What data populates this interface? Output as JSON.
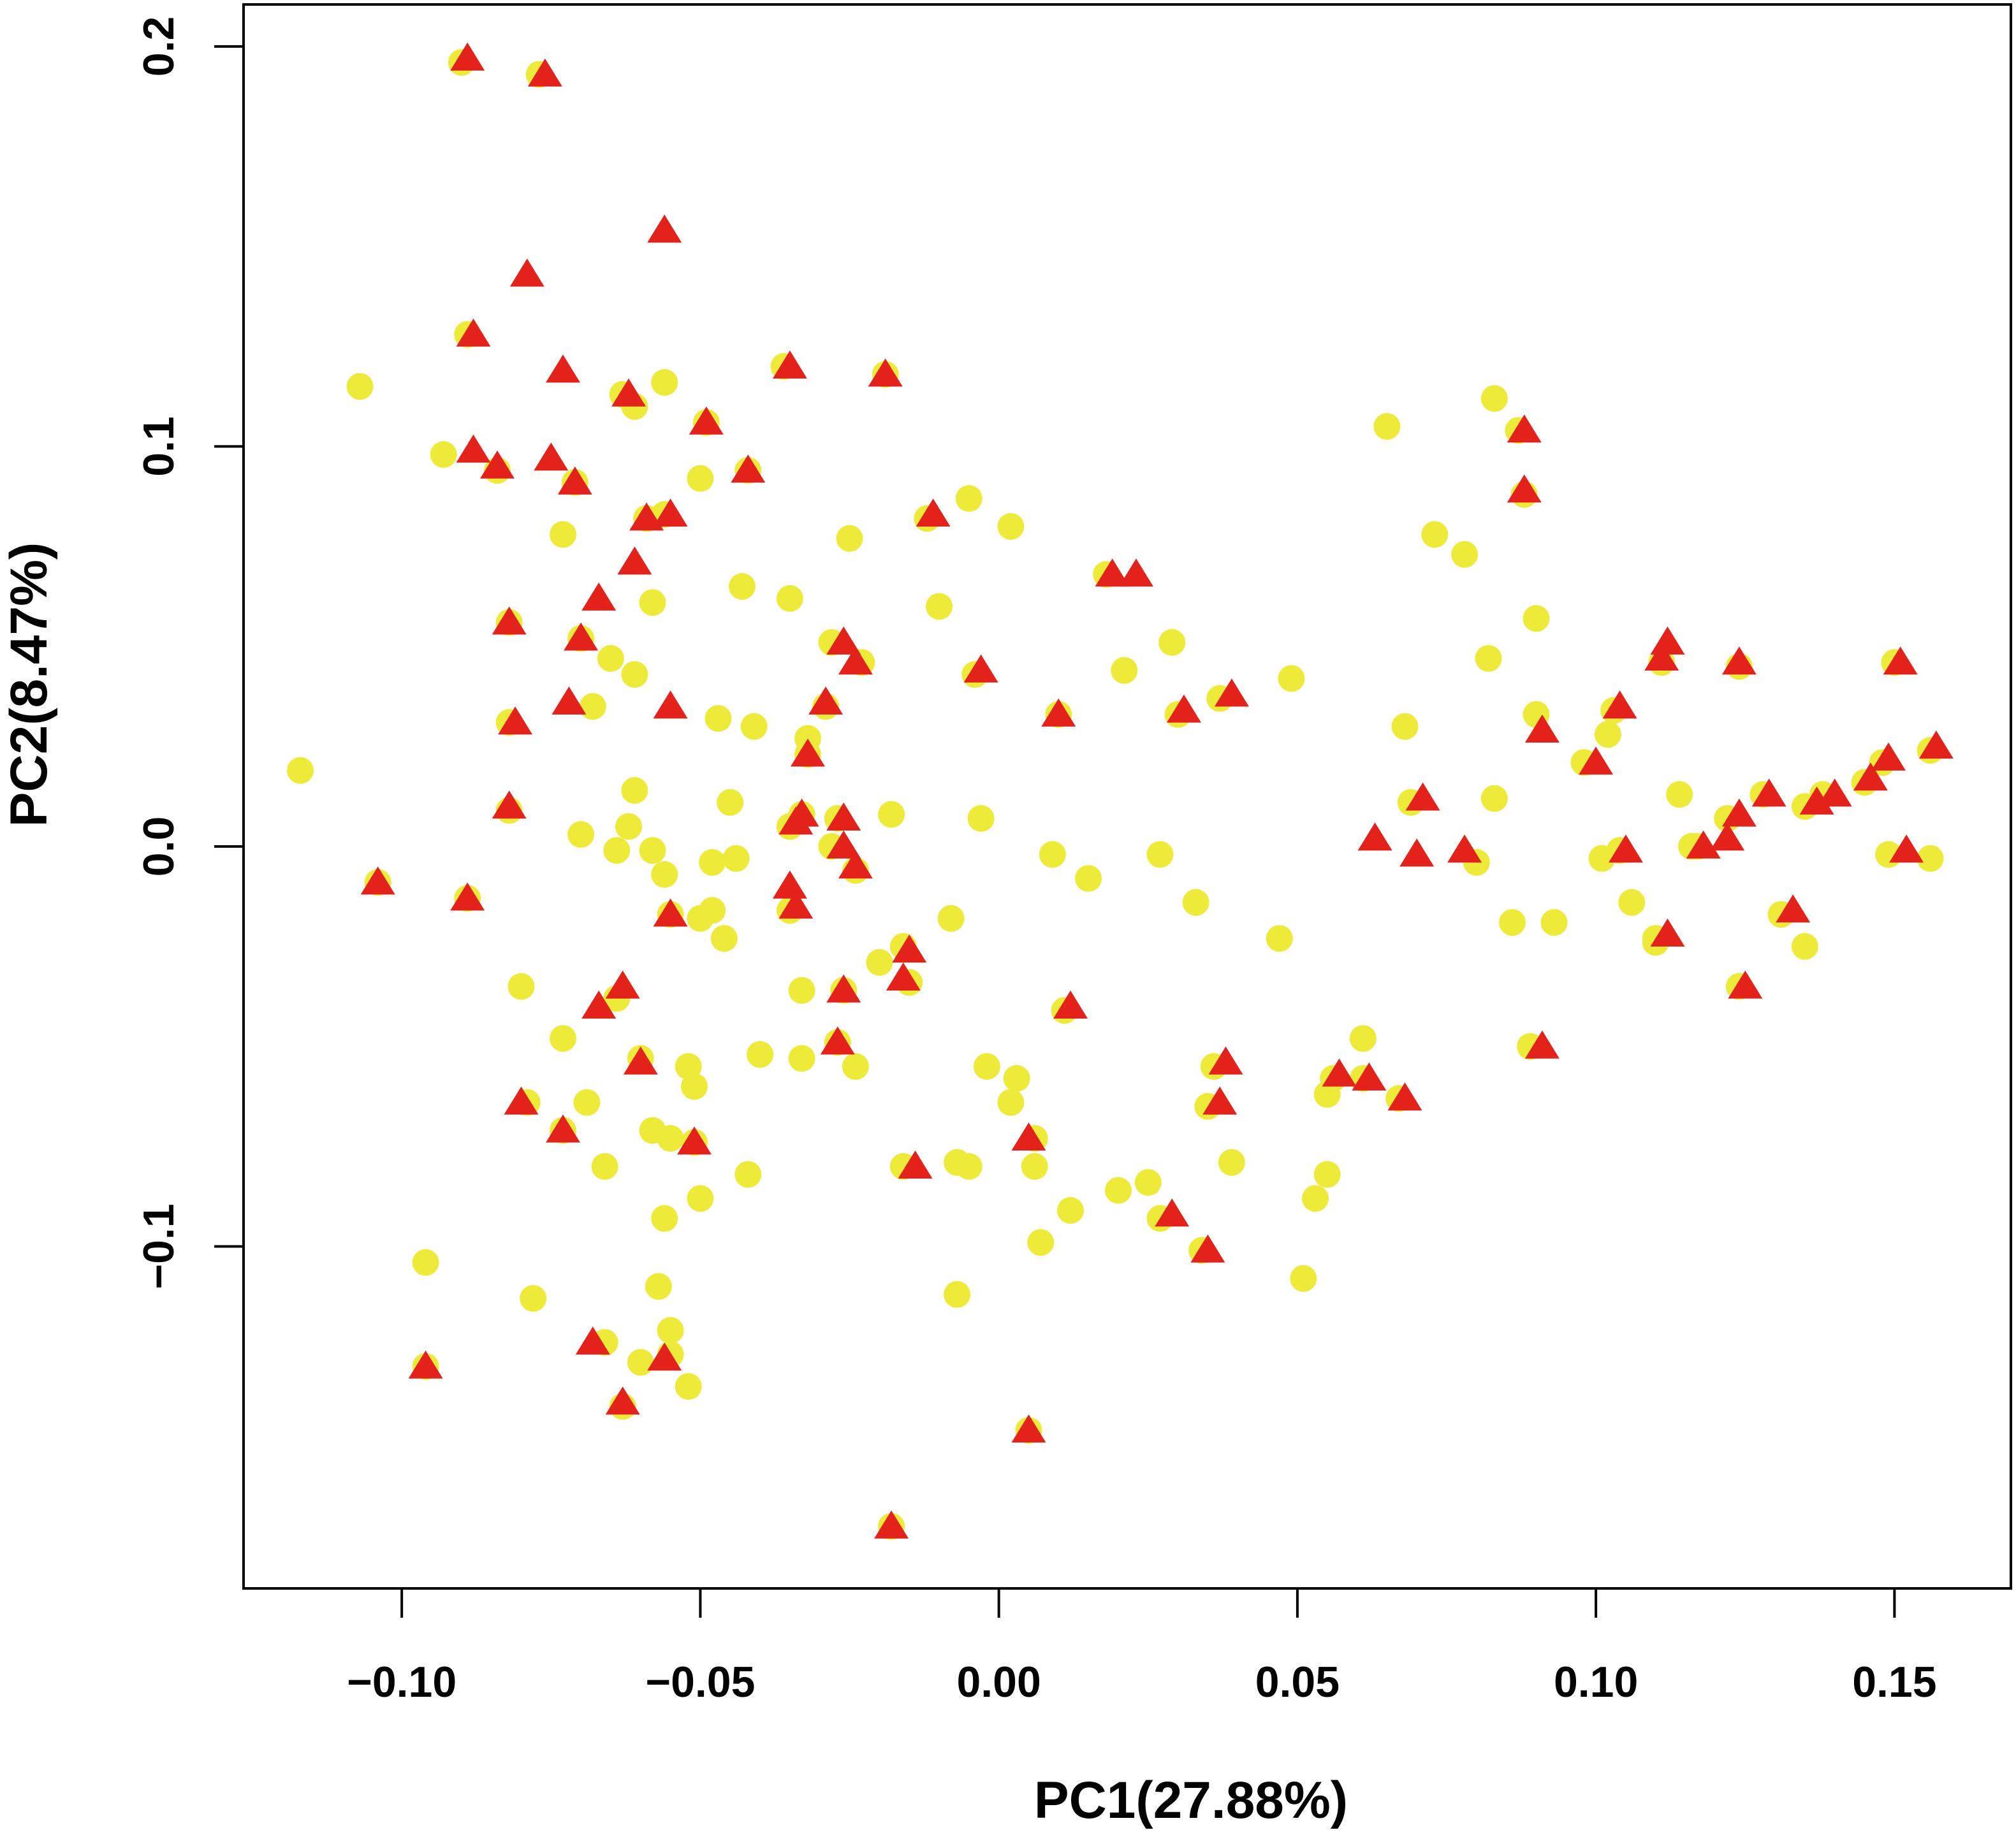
{
  "chart_data": {
    "type": "scatter",
    "xlabel": "PC1(27.88%)",
    "ylabel": "PC2(8.47%)",
    "xlim": [
      -0.1265,
      0.1695
    ],
    "ylim": [
      -0.1855,
      0.2105
    ],
    "x_ticks": [
      {
        "value": -0.1,
        "label": "−0.10"
      },
      {
        "value": -0.05,
        "label": "−0.05"
      },
      {
        "value": 0.0,
        "label": "0.00"
      },
      {
        "value": 0.05,
        "label": "0.05"
      },
      {
        "value": 0.1,
        "label": "0.10"
      },
      {
        "value": 0.15,
        "label": "0.15"
      }
    ],
    "y_ticks": [
      {
        "value": -0.1,
        "label": "−0.1"
      },
      {
        "value": 0.0,
        "label": "0.0"
      },
      {
        "value": 0.1,
        "label": "0.1"
      },
      {
        "value": 0.2,
        "label": "0.2"
      }
    ],
    "grid": false,
    "legend": "none",
    "series": [
      {
        "marker": "circle",
        "color": "#eeea3a",
        "points": [
          [
            -0.117,
            0.019
          ],
          [
            -0.107,
            0.115
          ],
          [
            -0.096,
            -0.104
          ],
          [
            -0.093,
            0.098
          ],
          [
            -0.09,
            0.196
          ],
          [
            -0.089,
            0.128
          ],
          [
            -0.082,
            0.031
          ],
          [
            -0.08,
            -0.035
          ],
          [
            -0.078,
            -0.113
          ],
          [
            -0.077,
            0.193
          ],
          [
            -0.073,
            0.078
          ],
          [
            -0.073,
            -0.048
          ],
          [
            -0.071,
            0.091
          ],
          [
            -0.07,
            0.003
          ],
          [
            -0.069,
            -0.064
          ],
          [
            -0.068,
            0.035
          ],
          [
            -0.066,
            -0.08
          ],
          [
            -0.065,
            0.047
          ],
          [
            -0.064,
            -0.001
          ],
          [
            -0.062,
            0.005
          ],
          [
            -0.061,
            0.043
          ],
          [
            -0.061,
            0.014
          ],
          [
            -0.061,
            0.11
          ],
          [
            -0.06,
            -0.129
          ],
          [
            -0.058,
            -0.001
          ],
          [
            -0.058,
            0.061
          ],
          [
            -0.058,
            -0.071
          ],
          [
            -0.056,
            0.116
          ],
          [
            -0.057,
            -0.11
          ],
          [
            -0.056,
            -0.093
          ],
          [
            -0.056,
            -0.007
          ],
          [
            -0.055,
            -0.073
          ],
          [
            -0.055,
            -0.121
          ],
          [
            -0.052,
            -0.135
          ],
          [
            -0.052,
            -0.055
          ],
          [
            -0.05,
            0.092
          ],
          [
            -0.051,
            -0.06
          ],
          [
            -0.05,
            -0.018
          ],
          [
            -0.05,
            -0.088
          ],
          [
            -0.048,
            -0.016
          ],
          [
            -0.048,
            -0.004
          ],
          [
            -0.047,
            0.032
          ],
          [
            -0.046,
            -0.023
          ],
          [
            -0.045,
            0.011
          ],
          [
            -0.044,
            -0.003
          ],
          [
            -0.043,
            0.065
          ],
          [
            -0.042,
            -0.082
          ],
          [
            -0.041,
            0.03
          ],
          [
            -0.04,
            -0.052
          ],
          [
            -0.035,
            0.062
          ],
          [
            -0.035,
            0.005
          ],
          [
            -0.033,
            -0.036
          ],
          [
            -0.033,
            -0.053
          ],
          [
            -0.032,
            0.027
          ],
          [
            -0.028,
            0.0
          ],
          [
            -0.025,
            0.077
          ],
          [
            -0.024,
            -0.055
          ],
          [
            -0.02,
            -0.029
          ],
          [
            -0.018,
            0.008
          ],
          [
            -0.01,
            0.06
          ],
          [
            -0.008,
            -0.018
          ],
          [
            -0.007,
            -0.079
          ],
          [
            -0.007,
            -0.112
          ],
          [
            -0.005,
            0.087
          ],
          [
            -0.005,
            -0.08
          ],
          [
            -0.003,
            0.007
          ],
          [
            -0.002,
            -0.055
          ],
          [
            0.002,
            0.08
          ],
          [
            0.002,
            -0.064
          ],
          [
            0.003,
            -0.058
          ],
          [
            0.006,
            -0.08
          ],
          [
            0.007,
            -0.099
          ],
          [
            0.009,
            -0.002
          ],
          [
            0.012,
            -0.091
          ],
          [
            0.015,
            -0.008
          ],
          [
            0.02,
            -0.086
          ],
          [
            0.021,
            0.044
          ],
          [
            0.025,
            -0.084
          ],
          [
            0.027,
            -0.002
          ],
          [
            0.029,
            0.051
          ],
          [
            0.033,
            -0.014
          ],
          [
            0.039,
            -0.079
          ],
          [
            0.047,
            -0.023
          ],
          [
            0.049,
            0.042
          ],
          [
            0.051,
            -0.108
          ],
          [
            0.053,
            -0.088
          ],
          [
            0.055,
            -0.082
          ],
          [
            0.055,
            -0.062
          ],
          [
            0.061,
            -0.048
          ],
          [
            0.065,
            0.105
          ],
          [
            0.068,
            0.03
          ],
          [
            0.073,
            0.078
          ],
          [
            0.078,
            0.073
          ],
          [
            0.08,
            -0.004
          ],
          [
            0.082,
            0.047
          ],
          [
            0.083,
            0.112
          ],
          [
            0.083,
            0.012
          ],
          [
            0.086,
            -0.019
          ],
          [
            0.09,
            0.057
          ],
          [
            0.09,
            0.033
          ],
          [
            0.093,
            -0.019
          ],
          [
            0.101,
            -0.003
          ],
          [
            0.102,
            0.028
          ],
          [
            0.106,
            -0.014
          ],
          [
            0.11,
            -0.024
          ],
          [
            0.114,
            0.013
          ],
          [
            0.116,
            0.0
          ],
          [
            0.122,
            0.007
          ],
          [
            0.135,
            -0.025
          ],
          [
            0.135,
            0.01
          ],
          [
            0.149,
            -0.002
          ],
          [
            0.148,
            0.021
          ],
          [
            0.156,
            -0.003
          ],
          [
            0.156,
            0.024
          ],
          [
            -0.028,
            0.051
          ],
          [
            -0.027,
            0.007
          ],
          [
            -0.035,
            -0.016
          ],
          [
            -0.015,
            -0.034
          ],
          [
            0.018,
            0.068
          ],
          [
            0.03,
            0.033
          ],
          [
            0.037,
            0.037
          ],
          [
            0.069,
            0.011
          ],
          [
            0.111,
            0.046
          ],
          [
            0.124,
            0.045
          ],
          [
            0.15,
            0.046
          ],
          [
            -0.104,
            -0.009
          ],
          [
            -0.082,
            0.056
          ],
          [
            -0.082,
            0.009
          ],
          [
            -0.084,
            0.094
          ],
          [
            -0.07,
            0.052
          ],
          [
            -0.063,
            0.113
          ],
          [
            -0.059,
            0.082
          ],
          [
            -0.056,
            0.083
          ],
          [
            -0.049,
            0.106
          ],
          [
            -0.042,
            0.094
          ],
          [
            -0.036,
            0.12
          ],
          [
            -0.019,
            0.118
          ],
          [
            -0.012,
            0.082
          ],
          [
            -0.004,
            0.043
          ],
          [
            0.01,
            0.033
          ],
          [
            0.011,
            -0.041
          ],
          [
            0.036,
            -0.055
          ],
          [
            0.035,
            -0.065
          ],
          [
            0.027,
            -0.093
          ],
          [
            0.034,
            -0.101
          ],
          [
            0.056,
            -0.058
          ],
          [
            0.061,
            -0.058
          ],
          [
            0.067,
            -0.063
          ],
          [
            0.089,
            -0.05
          ],
          [
            0.124,
            -0.035
          ],
          [
            0.131,
            -0.017
          ],
          [
            0.088,
            0.088
          ],
          [
            0.087,
            0.104
          ],
          [
            0.103,
            0.034
          ],
          [
            0.104,
            -0.001
          ],
          [
            0.098,
            0.021
          ],
          [
            0.11,
            -0.023
          ],
          [
            0.117,
            0.0
          ],
          [
            0.128,
            0.013
          ],
          [
            0.138,
            0.013
          ],
          [
            0.145,
            0.016
          ],
          [
            0.006,
            -0.073
          ],
          [
            0.005,
            -0.146
          ],
          [
            -0.016,
            -0.08
          ],
          [
            -0.018,
            -0.17
          ],
          [
            -0.096,
            -0.13
          ],
          [
            -0.089,
            -0.013
          ],
          [
            -0.079,
            -0.064
          ],
          [
            -0.073,
            -0.071
          ],
          [
            -0.064,
            -0.038
          ],
          [
            -0.066,
            -0.124
          ],
          [
            -0.063,
            -0.14
          ],
          [
            -0.055,
            -0.127
          ],
          [
            -0.051,
            -0.074
          ],
          [
            -0.06,
            -0.053
          ],
          [
            -0.055,
            -0.017
          ],
          [
            -0.027,
            -0.049
          ],
          [
            -0.026,
            -0.036
          ],
          [
            -0.016,
            -0.025
          ],
          [
            -0.024,
            -0.006
          ],
          [
            -0.032,
            0.023
          ],
          [
            -0.029,
            0.035
          ],
          [
            -0.023,
            0.046
          ],
          [
            -0.033,
            0.008
          ]
        ]
      },
      {
        "marker": "triangle",
        "color": "#e3221b",
        "points": [
          [
            -0.089,
            0.197
          ],
          [
            -0.076,
            0.193
          ],
          [
            -0.056,
            0.154
          ],
          [
            -0.079,
            0.143
          ],
          [
            -0.088,
            0.128
          ],
          [
            -0.073,
            0.119
          ],
          [
            -0.062,
            0.113
          ],
          [
            -0.035,
            0.12
          ],
          [
            -0.019,
            0.118
          ],
          [
            -0.049,
            0.106
          ],
          [
            -0.088,
            0.099
          ],
          [
            -0.084,
            0.095
          ],
          [
            -0.075,
            0.097
          ],
          [
            -0.071,
            0.091
          ],
          [
            -0.042,
            0.094
          ],
          [
            -0.059,
            0.082
          ],
          [
            -0.055,
            0.083
          ],
          [
            -0.011,
            0.083
          ],
          [
            -0.061,
            0.071
          ],
          [
            -0.067,
            0.062
          ],
          [
            -0.082,
            0.056
          ],
          [
            -0.07,
            0.052
          ],
          [
            -0.072,
            0.036
          ],
          [
            -0.081,
            0.031
          ],
          [
            -0.055,
            0.035
          ],
          [
            -0.026,
            0.051
          ],
          [
            -0.024,
            0.046
          ],
          [
            -0.029,
            0.036
          ],
          [
            -0.032,
            0.023
          ],
          [
            -0.003,
            0.044
          ],
          [
            0.01,
            0.033
          ],
          [
            0.019,
            0.068
          ],
          [
            0.023,
            0.068
          ],
          [
            0.031,
            0.034
          ],
          [
            0.039,
            0.038
          ],
          [
            -0.082,
            0.01
          ],
          [
            -0.104,
            -0.009
          ],
          [
            -0.089,
            -0.013
          ],
          [
            -0.034,
            0.006
          ],
          [
            -0.033,
            0.008
          ],
          [
            -0.026,
            0.007
          ],
          [
            -0.026,
            0.0
          ],
          [
            -0.024,
            -0.005
          ],
          [
            -0.035,
            -0.01
          ],
          [
            -0.034,
            -0.015
          ],
          [
            -0.055,
            -0.017
          ],
          [
            -0.063,
            -0.035
          ],
          [
            -0.067,
            -0.04
          ],
          [
            -0.026,
            -0.036
          ],
          [
            -0.015,
            -0.026
          ],
          [
            -0.016,
            -0.033
          ],
          [
            -0.06,
            -0.054
          ],
          [
            -0.027,
            -0.049
          ],
          [
            -0.08,
            -0.064
          ],
          [
            -0.073,
            -0.071
          ],
          [
            -0.051,
            -0.074
          ],
          [
            -0.014,
            -0.08
          ],
          [
            0.005,
            -0.073
          ],
          [
            0.012,
            -0.04
          ],
          [
            0.038,
            -0.054
          ],
          [
            0.037,
            -0.064
          ],
          [
            0.029,
            -0.092
          ],
          [
            0.035,
            -0.101
          ],
          [
            -0.096,
            -0.13
          ],
          [
            -0.068,
            -0.124
          ],
          [
            -0.063,
            -0.139
          ],
          [
            -0.056,
            -0.128
          ],
          [
            0.005,
            -0.146
          ],
          [
            -0.018,
            -0.17
          ],
          [
            0.057,
            -0.057
          ],
          [
            0.062,
            -0.058
          ],
          [
            0.068,
            -0.063
          ],
          [
            0.063,
            0.002
          ],
          [
            0.07,
            -0.002
          ],
          [
            0.071,
            0.012
          ],
          [
            0.078,
            -0.001
          ],
          [
            0.088,
            0.104
          ],
          [
            0.088,
            0.089
          ],
          [
            0.091,
            0.029
          ],
          [
            0.091,
            -0.05
          ],
          [
            0.1,
            0.021
          ],
          [
            0.104,
            0.035
          ],
          [
            0.105,
            -0.001
          ],
          [
            0.111,
            0.047
          ],
          [
            0.112,
            0.051
          ],
          [
            0.112,
            -0.022
          ],
          [
            0.118,
            0.0
          ],
          [
            0.122,
            0.002
          ],
          [
            0.124,
            0.008
          ],
          [
            0.124,
            0.046
          ],
          [
            0.125,
            -0.035
          ],
          [
            0.129,
            0.013
          ],
          [
            0.133,
            -0.016
          ],
          [
            0.137,
            0.011
          ],
          [
            0.14,
            0.013
          ],
          [
            0.146,
            0.017
          ],
          [
            0.149,
            0.022
          ],
          [
            0.151,
            0.046
          ],
          [
            0.152,
            -0.001
          ],
          [
            0.157,
            0.025
          ]
        ]
      }
    ]
  }
}
